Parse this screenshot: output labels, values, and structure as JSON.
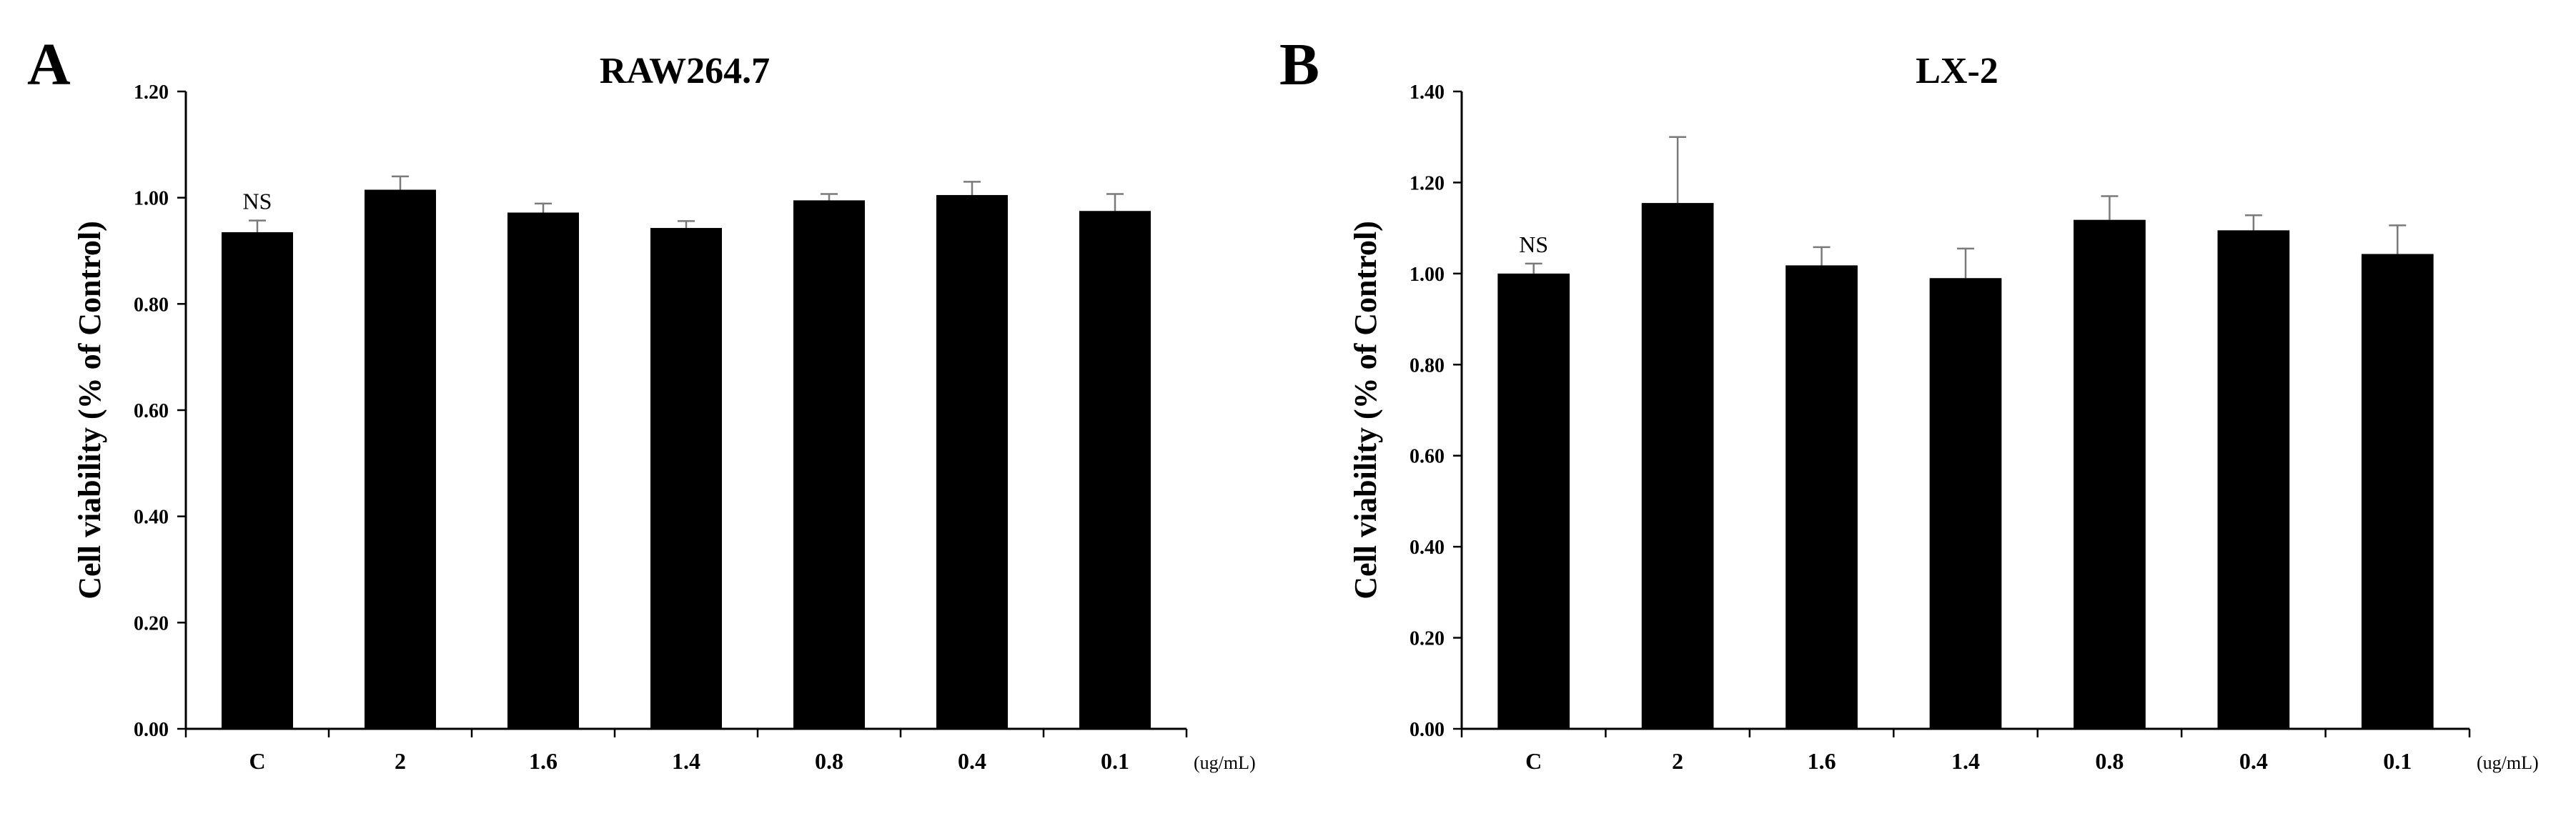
{
  "chart_data": [
    {
      "type": "bar",
      "panel": "A",
      "title": "RAW264.7",
      "ylabel": "Cell viability  (% of Control)",
      "xunit": "(ug/mL)",
      "categories": [
        "C",
        "2",
        "1.6",
        "1.4",
        "0.8",
        "0.4",
        "0.1"
      ],
      "values": [
        0.935,
        1.015,
        0.972,
        0.943,
        0.995,
        1.005,
        0.975
      ],
      "errors": [
        0.022,
        0.025,
        0.017,
        0.013,
        0.012,
        0.025,
        0.032
      ],
      "ylim": [
        0,
        1.2
      ],
      "yticks": [
        "0.00",
        "0.20",
        "0.40",
        "0.60",
        "0.80",
        "1.00",
        "1.20"
      ],
      "annotation": "NS"
    },
    {
      "type": "bar",
      "panel": "B",
      "title": "LX-2",
      "ylabel": "Cell viability  (% of Control)",
      "xunit": "(ug/mL)",
      "categories": [
        "C",
        "2",
        "1.6",
        "1.4",
        "0.8",
        "0.4",
        "0.1"
      ],
      "values": [
        1.0,
        1.155,
        1.018,
        0.99,
        1.118,
        1.095,
        1.043
      ],
      "errors": [
        0.022,
        0.145,
        0.04,
        0.065,
        0.052,
        0.033,
        0.063
      ],
      "ylim": [
        0,
        1.4
      ],
      "yticks": [
        "0.00",
        "0.20",
        "0.40",
        "0.60",
        "0.80",
        "1.00",
        "1.20",
        "1.40"
      ],
      "annotation": "NS"
    }
  ]
}
